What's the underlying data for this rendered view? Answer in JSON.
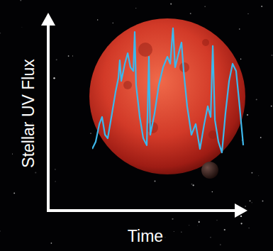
{
  "chart_data": {
    "type": "line",
    "x_label": "Time",
    "y_label": "Stellar UV Flux",
    "tick_labels": false,
    "grid": false,
    "xlim": [
      0,
      100
    ],
    "ylim": [
      0,
      100
    ],
    "xticks": [],
    "yticks": [],
    "series": [
      {
        "name": "Stellar UV Flux",
        "color": "#3db8ec",
        "x": [
          0,
          2.3,
          4.7,
          6.5,
          8.4,
          10.2,
          13,
          15.3,
          17.2,
          18.1,
          19.1,
          21.4,
          23.3,
          25.1,
          27,
          27.9,
          28.8,
          31.2,
          33.5,
          35.8,
          37.2,
          38.1,
          40.9,
          43.7,
          46.5,
          49.3,
          51.2,
          53,
          54.4,
          56.7,
          58.6,
          60,
          62.3,
          65.1,
          67.9,
          70.7,
          73.5,
          75.8,
          77.7,
          79.1,
          80.5,
          82.8,
          85.1,
          87.4,
          89.8,
          92.1,
          94.4,
          96.7,
          99.1
        ],
        "values": [
          31.6,
          35.3,
          44.4,
          48,
          38.9,
          37.1,
          49.8,
          60.7,
          68,
          77.1,
          66.5,
          75.3,
          80.7,
          73.5,
          71.6,
          91.6,
          64.4,
          48,
          37.1,
          33.5,
          78.9,
          38.9,
          49.8,
          64.4,
          73.5,
          78.9,
          75.3,
          93.5,
          73.5,
          80.7,
          86.2,
          71.6,
          53.5,
          38.9,
          44.4,
          31.6,
          44.4,
          53.5,
          48,
          84.4,
          46.5,
          35.3,
          29.8,
          49.8,
          66.5,
          75.3,
          71.6,
          53.5,
          33.5
        ]
      }
    ]
  }
}
